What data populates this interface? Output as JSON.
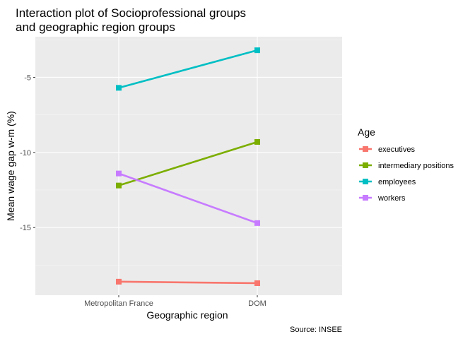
{
  "chart_data": {
    "type": "line",
    "title_lines": [
      "Interaction plot of Socioprofessional groups",
      "and geographic region groups"
    ],
    "xlabel": "Geographic region",
    "ylabel": "Mean wage gap w-m (%)",
    "caption": "Source: INSEE",
    "categories": [
      "Metropolitan France",
      "DOM"
    ],
    "ylim": [
      -19.5,
      -2.3
    ],
    "y_ticks": [
      -15,
      -10,
      -5
    ],
    "grid": true,
    "legend": {
      "title": "Age",
      "position": "right"
    },
    "series": [
      {
        "name": "executives",
        "color": "#F8766D",
        "values": [
          -18.6,
          -18.7
        ]
      },
      {
        "name": "intermediary positions",
        "color": "#7CAE00",
        "values": [
          -12.2,
          -9.3
        ]
      },
      {
        "name": "employees",
        "color": "#00BFC4",
        "values": [
          -5.7,
          -3.2
        ]
      },
      {
        "name": "workers",
        "color": "#C77CFF",
        "values": [
          -11.4,
          -14.7
        ]
      }
    ]
  }
}
